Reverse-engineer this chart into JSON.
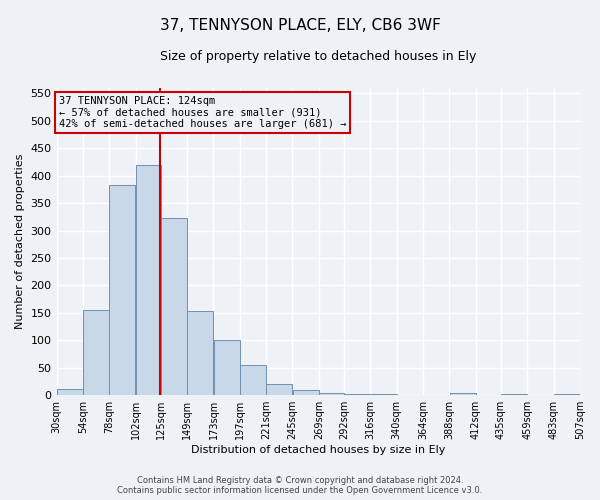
{
  "title": "37, TENNYSON PLACE, ELY, CB6 3WF",
  "subtitle": "Size of property relative to detached houses in Ely",
  "xlabel": "Distribution of detached houses by size in Ely",
  "ylabel": "Number of detached properties",
  "footer_line1": "Contains HM Land Registry data © Crown copyright and database right 2024.",
  "footer_line2": "Contains public sector information licensed under the Open Government Licence v3.0.",
  "annotation_line1": "37 TENNYSON PLACE: 124sqm",
  "annotation_line2": "← 57% of detached houses are smaller (931)",
  "annotation_line3": "42% of semi-detached houses are larger (681) →",
  "bar_left_edges": [
    30,
    54,
    78,
    102,
    125,
    149,
    173,
    197,
    221,
    245,
    269,
    292,
    316,
    340,
    364,
    388,
    412,
    435,
    459,
    483
  ],
  "bar_widths": [
    24,
    24,
    24,
    23,
    24,
    24,
    24,
    24,
    24,
    24,
    23,
    24,
    24,
    24,
    24,
    24,
    23,
    24,
    24,
    24
  ],
  "bar_heights": [
    12,
    155,
    383,
    420,
    322,
    153,
    100,
    55,
    20,
    10,
    4,
    2,
    2,
    1,
    1,
    4,
    1,
    2,
    1,
    2
  ],
  "bar_color": "#c8d8e8",
  "bar_edge_color": "#7090b0",
  "vline_x": 124,
  "vline_color": "#cc0000",
  "ylim": [
    0,
    560
  ],
  "yticks": [
    0,
    50,
    100,
    150,
    200,
    250,
    300,
    350,
    400,
    450,
    500,
    550
  ],
  "xtick_labels": [
    "30sqm",
    "54sqm",
    "78sqm",
    "102sqm",
    "125sqm",
    "149sqm",
    "173sqm",
    "197sqm",
    "221sqm",
    "245sqm",
    "269sqm",
    "292sqm",
    "316sqm",
    "340sqm",
    "364sqm",
    "388sqm",
    "412sqm",
    "435sqm",
    "459sqm",
    "483sqm",
    "507sqm"
  ],
  "background_color": "#eef2f7",
  "grid_color": "#ffffff",
  "annotation_box_color": "#cc0000",
  "title_fontsize": 11,
  "subtitle_fontsize": 9,
  "xlabel_fontsize": 8,
  "ylabel_fontsize": 8,
  "ytick_fontsize": 8,
  "xtick_fontsize": 7,
  "annotation_fontsize": 7.5,
  "footer_fontsize": 6
}
